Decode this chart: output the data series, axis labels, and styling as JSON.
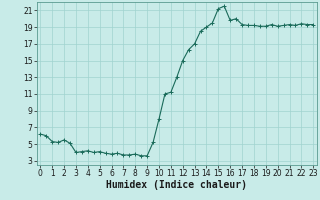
{
  "x": [
    0,
    0.5,
    1,
    1.5,
    2,
    2.5,
    3,
    3.5,
    4,
    4.5,
    5,
    5.5,
    6,
    6.5,
    7,
    7.5,
    8,
    8.5,
    9,
    9.5,
    10,
    10.5,
    11,
    11.5,
    12,
    12.5,
    13,
    13.5,
    14,
    14.5,
    15,
    15.5,
    16,
    16.5,
    17,
    17.5,
    18,
    18.5,
    19,
    19.5,
    20,
    20.5,
    21,
    21.5,
    22,
    22.5,
    23
  ],
  "y": [
    6.2,
    6.0,
    5.3,
    5.2,
    5.5,
    5.1,
    4.0,
    4.1,
    4.2,
    4.0,
    4.1,
    3.9,
    3.8,
    3.9,
    3.7,
    3.7,
    3.8,
    3.6,
    3.6,
    5.2,
    8.0,
    11.0,
    11.2,
    13.0,
    15.0,
    16.3,
    17.0,
    18.5,
    19.0,
    19.5,
    21.2,
    21.5,
    19.8,
    20.0,
    19.3,
    19.2,
    19.2,
    19.1,
    19.1,
    19.3,
    19.1,
    19.2,
    19.3,
    19.2,
    19.4,
    19.3,
    19.3
  ],
  "line_color": "#1a6b5a",
  "marker": "+",
  "marker_size": 3,
  "bg_color": "#c8ebe8",
  "grid_color": "#a0d4cf",
  "xlabel": "Humidex (Indice chaleur)",
  "xlabel_fontsize": 7,
  "ytick_labels": [
    "3",
    "5",
    "7",
    "9",
    "11",
    "13",
    "15",
    "17",
    "19",
    "21"
  ],
  "ytick_values": [
    3,
    5,
    7,
    9,
    11,
    13,
    15,
    17,
    19,
    21
  ],
  "xtick_labels": [
    "0",
    "1",
    "2",
    "3",
    "4",
    "5",
    "6",
    "7",
    "8",
    "9",
    "10",
    "11",
    "12",
    "13",
    "14",
    "15",
    "16",
    "17",
    "18",
    "19",
    "20",
    "21",
    "22",
    "23"
  ],
  "xtick_values": [
    0,
    1,
    2,
    3,
    4,
    5,
    6,
    7,
    8,
    9,
    10,
    11,
    12,
    13,
    14,
    15,
    16,
    17,
    18,
    19,
    20,
    21,
    22,
    23
  ],
  "xlim": [
    -0.3,
    23.3
  ],
  "ylim": [
    2.5,
    22.0
  ],
  "tick_fontsize": 5.5,
  "linewidth": 0.8
}
